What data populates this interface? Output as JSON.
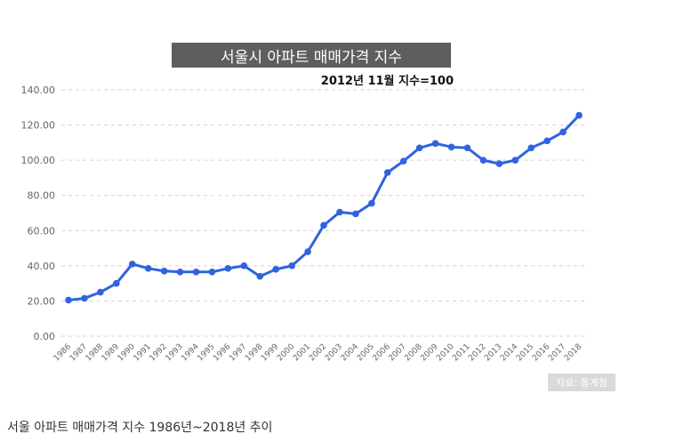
{
  "chart_data": {
    "type": "line",
    "title": "서울시 아파트 매매가격 지수",
    "subtitle": "2012년 11월 지수=100",
    "x": [
      "1986",
      "1987",
      "1988",
      "1989",
      "1990",
      "1991",
      "1992",
      "1993",
      "1994",
      "1995",
      "1996",
      "1997",
      "1998",
      "1999",
      "2000",
      "2001",
      "2002",
      "2003",
      "2004",
      "2005",
      "2006",
      "2007",
      "2008",
      "2009",
      "2010",
      "2011",
      "2012",
      "2013",
      "2014",
      "2015",
      "2016",
      "2017",
      "2018"
    ],
    "series": [
      {
        "values": [
          20.5,
          21.5,
          25.0,
          30.0,
          41.0,
          38.5,
          37.0,
          36.5,
          36.5,
          36.5,
          38.5,
          40.0,
          34.0,
          38.0,
          40.0,
          48.0,
          63.0,
          70.5,
          69.5,
          75.5,
          93.0,
          99.5,
          107.0,
          109.5,
          107.5,
          107.0,
          100.0,
          98.0,
          100.0,
          107.0,
          111.0,
          116.0,
          125.5
        ]
      }
    ],
    "yticks": [
      "0.00",
      "20.00",
      "40.00",
      "60.00",
      "80.00",
      "100.00",
      "120.00",
      "140.00"
    ],
    "ylim": [
      0,
      140
    ],
    "grid": true,
    "line_color": "#2f63e0"
  },
  "source_label": "자료: 통계청",
  "caption": "서울 아파트 매매가격 지수 1986년~2018년 추이"
}
